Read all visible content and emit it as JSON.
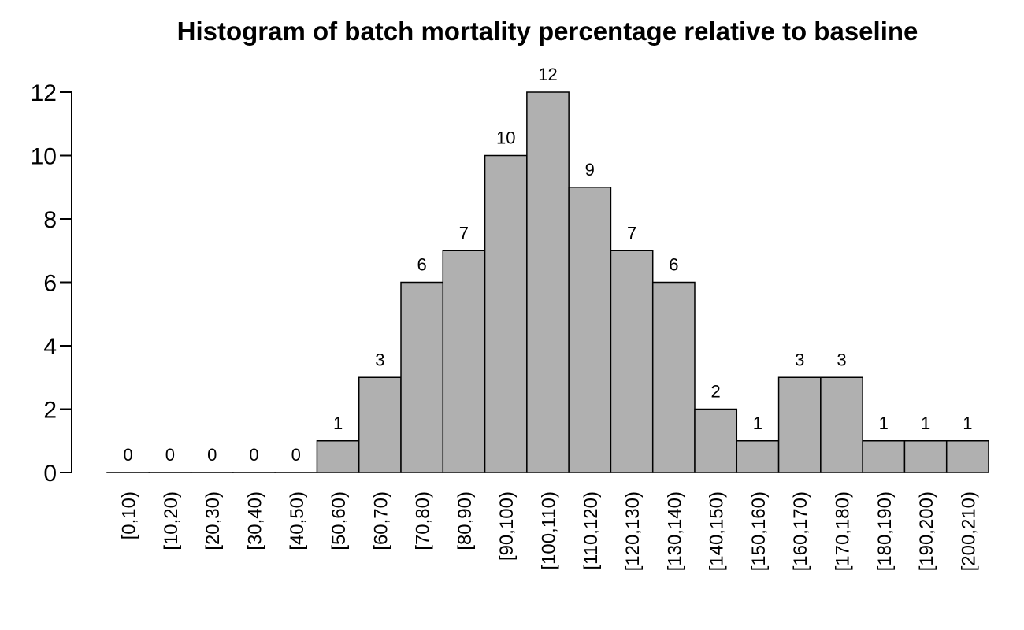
{
  "chart_data": {
    "type": "bar",
    "title": "Histogram of batch mortality percentage relative to baseline",
    "xlabel": "",
    "ylabel": "",
    "categories": [
      "[0,10)",
      "[10,20)",
      "[20,30)",
      "[30,40)",
      "[40,50)",
      "[50,60)",
      "[60,70)",
      "[70,80)",
      "[80,90)",
      "[90,100)",
      "[100,110)",
      "[110,120)",
      "[120,130)",
      "[130,140)",
      "[140,150)",
      "[150,160)",
      "[160,170)",
      "[170,180)",
      "[180,190)",
      "[190,200)",
      "[200,210)"
    ],
    "values": [
      0,
      0,
      0,
      0,
      0,
      1,
      3,
      6,
      7,
      10,
      12,
      9,
      7,
      6,
      2,
      1,
      3,
      3,
      1,
      1,
      1
    ],
    "ylim": [
      0,
      12
    ],
    "yticks": [
      0,
      2,
      4,
      6,
      8,
      10,
      12
    ],
    "grid": false,
    "bar_color": "#b0b0b0",
    "edge_color": "#000000"
  }
}
